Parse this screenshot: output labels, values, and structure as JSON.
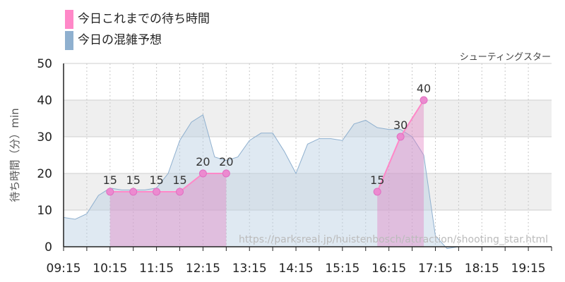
{
  "legend": {
    "items": [
      {
        "label": "今日これまでの待ち時間",
        "color": "#ff88c8"
      },
      {
        "label": "今日の混雑予想",
        "color": "#8fb0cf"
      }
    ]
  },
  "chart_title": "シューティングスター",
  "source_url": "https://parksreal.jp/huistenbosch/attraction/shooting_star.html",
  "chart_data": {
    "type": "area",
    "title": "シューティングスター",
    "ylabel": "待ち時間（分）min",
    "xlabel": "",
    "ylim": [
      0,
      50
    ],
    "yticks": [
      "0",
      "10",
      "20",
      "30",
      "40",
      "50"
    ],
    "xlim": [
      "09:15",
      "19:45"
    ],
    "xticks": [
      "09:15",
      "10:15",
      "11:15",
      "12:15",
      "13:15",
      "14:15",
      "15:15",
      "16:15",
      "17:15",
      "18:15",
      "19:15"
    ],
    "grid": true,
    "legend_position": "top-left",
    "series": [
      {
        "name": "今日の混雑予想",
        "color": "#8fb0cf",
        "x": [
          "09:15",
          "09:30",
          "09:45",
          "10:00",
          "10:15",
          "10:30",
          "10:45",
          "11:00",
          "11:15",
          "11:30",
          "11:45",
          "12:00",
          "12:15",
          "12:30",
          "12:45",
          "13:00",
          "13:15",
          "13:30",
          "13:45",
          "14:00",
          "14:15",
          "14:30",
          "14:45",
          "15:00",
          "15:15",
          "15:30",
          "15:45",
          "16:00",
          "16:15",
          "16:30",
          "16:45",
          "17:00",
          "17:15",
          "17:30",
          "17:45",
          "18:00",
          "18:15",
          "18:30",
          "18:45",
          "19:00",
          "19:15",
          "19:30",
          "19:45"
        ],
        "y": [
          8,
          7.5,
          9,
          14,
          16,
          15.5,
          15.5,
          15.5,
          16,
          20,
          29,
          34,
          36,
          24.5,
          23.5,
          24.5,
          29,
          31,
          31,
          26,
          20,
          28,
          29.5,
          29.5,
          29,
          33.5,
          34.5,
          32.5,
          32,
          32,
          30,
          25,
          3,
          -0.5,
          0,
          0,
          0,
          0,
          0,
          0,
          0,
          0,
          0
        ]
      },
      {
        "name": "今日これまでの待ち時間",
        "color": "#ff88c8",
        "segments": [
          {
            "x": [
              "10:15",
              "10:45",
              "11:15",
              "11:45",
              "12:15",
              "12:45"
            ],
            "y": [
              15,
              15,
              15,
              15,
              20,
              20
            ]
          },
          {
            "x": [
              "16:00",
              "16:30",
              "17:00"
            ],
            "y": [
              15,
              30,
              40
            ]
          }
        ]
      }
    ]
  }
}
